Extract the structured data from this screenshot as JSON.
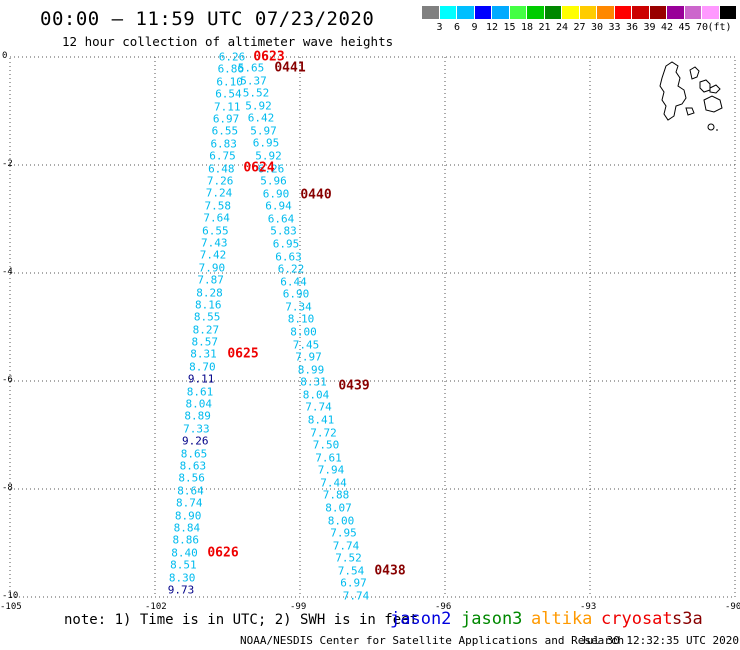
{
  "title": "00:00 – 11:59 UTC 07/23/2020",
  "subtitle": "12 hour collection of altimeter wave heights",
  "legend": {
    "colors": [
      "#808080",
      "#00ffff",
      "#00bfff",
      "#0000ff",
      "#00aaff",
      "#44ff44",
      "#00cc00",
      "#008800",
      "#ffff00",
      "#ffcc00",
      "#ff8800",
      "#ff0000",
      "#cc0000",
      "#990000",
      "#990099",
      "#cc66cc",
      "#ff99ff",
      "#000000"
    ],
    "labels": [
      "3",
      "6",
      "9",
      "12",
      "15",
      "18",
      "21",
      "24",
      "27",
      "30",
      "33",
      "36",
      "39",
      "42",
      "45",
      "70",
      "(ft)"
    ]
  },
  "axes": {
    "x_ticks": [
      "-105",
      "-102",
      "-99",
      "-96",
      "-93",
      "-90"
    ],
    "y_ticks": [
      "0",
      "-2",
      "-4",
      "-6",
      "-8",
      "-10"
    ]
  },
  "tracks": {
    "track_a": {
      "color": "#00bbee",
      "dark_color": "#000088",
      "values": [
        "6.26",
        "6.86",
        "6.10",
        "6.54",
        "7.11",
        "6.97",
        "6.55",
        "6.83",
        "6.75",
        "6.48",
        "7.26",
        "7.24",
        "7.58",
        "7.64",
        "6.55",
        "7.43",
        "7.42",
        "7.90",
        "7.87",
        "8.28",
        "8.16",
        "8.55",
        "8.27",
        "8.57",
        "8.31",
        "8.70",
        "9.11",
        "8.61",
        "8.04",
        "8.89",
        "7.33",
        "9.26",
        "8.65",
        "8.63",
        "8.56",
        "8.64",
        "8.74",
        "8.90",
        "8.84",
        "8.86",
        "8.40",
        "8.51",
        "8.30",
        "9.73"
      ],
      "dark_indices": [
        26,
        31,
        43
      ]
    },
    "track_b": {
      "color": "#00bbee",
      "values": [
        "5.65",
        "5.37",
        "5.52",
        "5.92",
        "6.42",
        "5.97",
        "6.95",
        "5.92",
        "6.26",
        "5.96",
        "6.90",
        "6.94",
        "6.64",
        "5.83",
        "6.95",
        "6.63",
        "6.22",
        "6.44",
        "6.90",
        "7.34",
        "8.10",
        "8.00",
        "7.45",
        "7.97",
        "8.99",
        "8.31",
        "8.04",
        "7.74",
        "8.41",
        "7.72",
        "7.50",
        "7.61",
        "7.94",
        "7.44",
        "7.88",
        "8.07",
        "8.00",
        "7.95",
        "7.74",
        "7.52",
        "7.54",
        "6.97",
        "7.74"
      ]
    }
  },
  "time_labels": [
    {
      "text": "0623",
      "color": "#ee0000"
    },
    {
      "text": "0441",
      "color": "#880000"
    },
    {
      "text": "0624",
      "color": "#ee0000"
    },
    {
      "text": "0440",
      "color": "#880000"
    },
    {
      "text": "0625",
      "color": "#ee0000"
    },
    {
      "text": "0439",
      "color": "#880000"
    },
    {
      "text": "0626",
      "color": "#ee0000"
    },
    {
      "text": "0438",
      "color": "#880000"
    }
  ],
  "note": "note: 1) Time is in UTC; 2) SWH is in feet",
  "satellites": [
    {
      "name": "jason2",
      "color": "#0000dd"
    },
    {
      "name": "jason3",
      "color": "#008800"
    },
    {
      "name": "altika",
      "color": "#ff9900"
    },
    {
      "name": "cryosat",
      "color": "#ee0000"
    },
    {
      "name": "s3a",
      "color": "#880000"
    }
  ],
  "footer": "NOAA/NESDIS Center for Satellite Applications and Research",
  "footer_timestamp": "Jul 30 12:32:35 UTC 2020"
}
